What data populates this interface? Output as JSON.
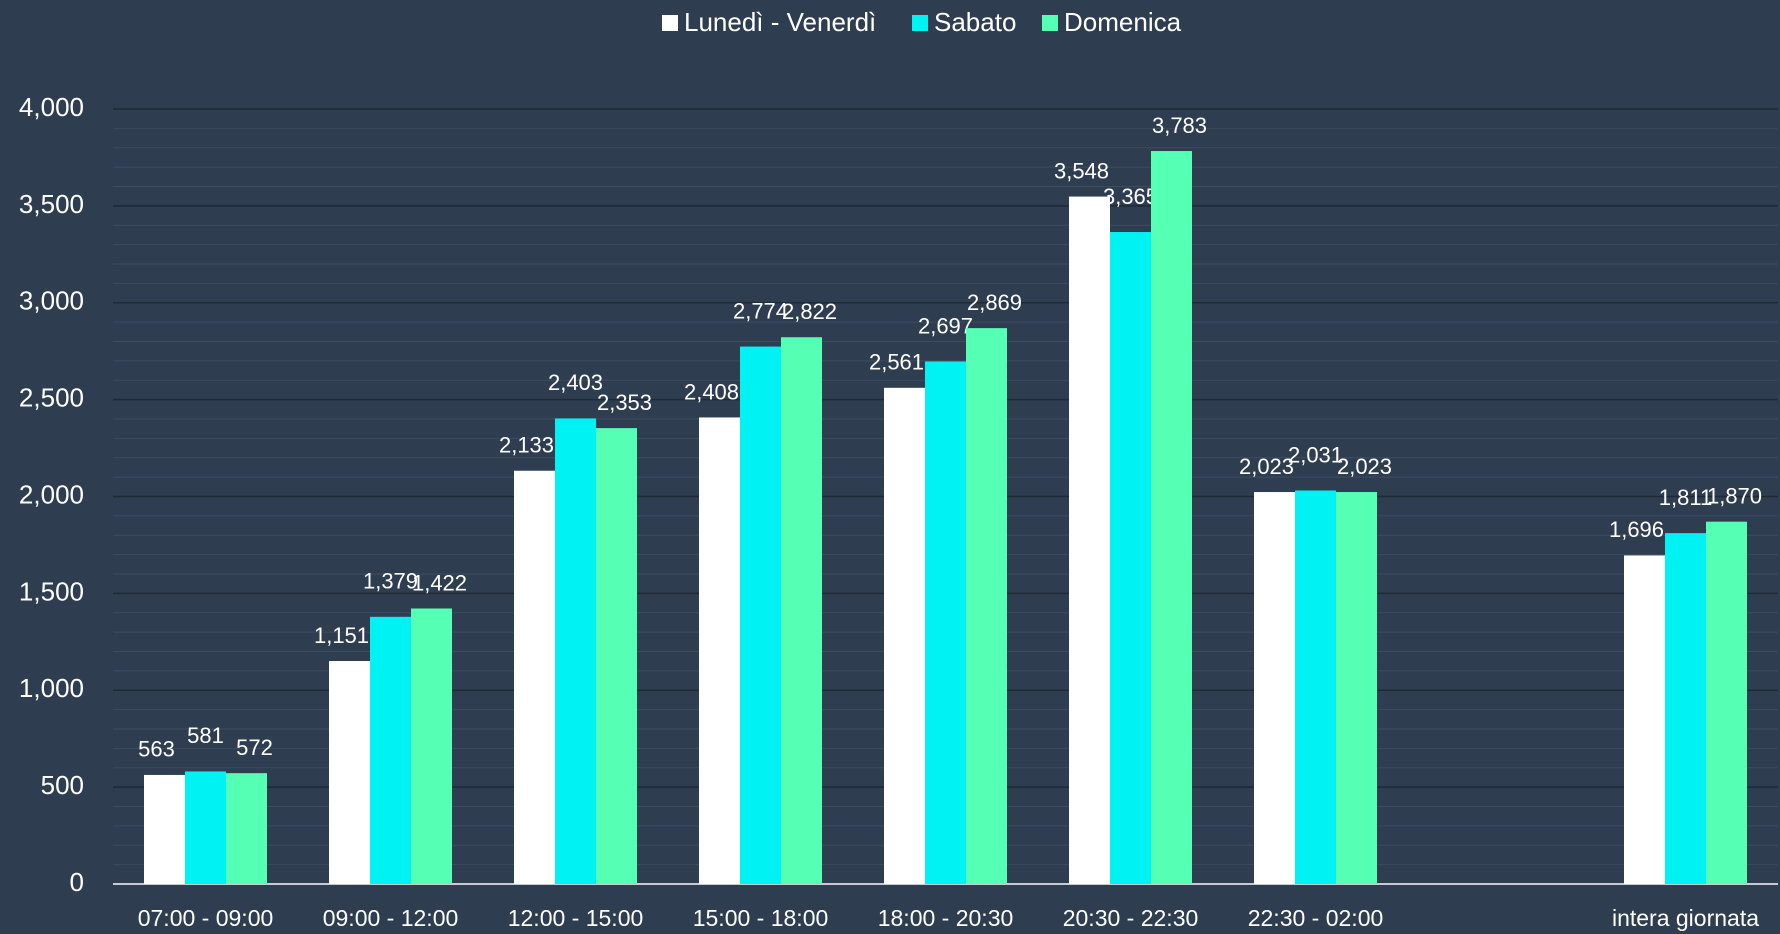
{
  "chart_data": {
    "type": "bar",
    "categories": [
      "07:00 - 09:00",
      "09:00 - 12:00",
      "12:00 - 15:00",
      "15:00 - 18:00",
      "18:00 - 20:30",
      "20:30 - 22:30",
      "22:30 - 02:00",
      null,
      "intera giornata"
    ],
    "series": [
      {
        "name": "Lunedì - Venerdì",
        "color": "#ffffff",
        "values": [
          563,
          1151,
          2133,
          2408,
          2561,
          3548,
          2023,
          null,
          1696
        ],
        "value_labels": [
          "563",
          "1,151",
          "2,133",
          "2,408",
          "2,561",
          "3,548",
          "2,023",
          null,
          "1,696"
        ]
      },
      {
        "name": "Sabato",
        "color": "#00f2f2",
        "values": [
          581,
          1379,
          2403,
          2774,
          2697,
          3365,
          2031,
          null,
          1811
        ],
        "value_labels": [
          "581",
          "1,379",
          "2,403",
          "2,774",
          "2,697",
          "3,365",
          "2,031",
          null,
          "1,811"
        ]
      },
      {
        "name": "Domenica",
        "color": "#55ffb4",
        "values": [
          572,
          1422,
          2353,
          2822,
          2869,
          3783,
          2023,
          null,
          1870
        ],
        "value_labels": [
          "572",
          "1,422",
          "2,353",
          "2,822",
          "2,869",
          "3,783",
          "2,023",
          null,
          "1,870"
        ]
      }
    ],
    "ylim": [
      0,
      4000
    ],
    "yticks": [
      0,
      500,
      {
        "value": 1000,
        "label": "1,000"
      },
      {
        "value": 1500,
        "label": "1,500"
      },
      {
        "value": 2000,
        "label": "2,000"
      },
      {
        "value": 2500,
        "label": "2,500"
      },
      {
        "value": 3000,
        "label": "3,000"
      },
      {
        "value": 3500,
        "label": "3,500"
      },
      {
        "value": 4000,
        "label": "4,000"
      }
    ],
    "grid": true,
    "legend": "top"
  }
}
